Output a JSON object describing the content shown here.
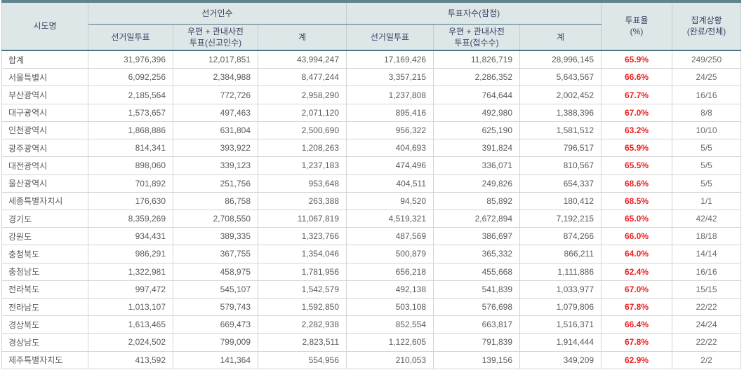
{
  "colors": {
    "top_bar": "#5e848d",
    "header_bg": "#dde7e8",
    "header_text": "#3d4266",
    "header_rule": "#4a7680",
    "turnout_red": "#ee1c1c",
    "body_text": "#5b5b5b",
    "grid_line": "#d4d4d4"
  },
  "table": {
    "headers": {
      "sido": "시도명",
      "electors_group": "선거인수",
      "voters_group": "투표자수(잠정)",
      "electors_day": "선거일투표",
      "electors_postal": "우편 + 관내사전\n투표(신고인수)",
      "electors_total": "계",
      "voters_day": "선거일투표",
      "voters_postal": "우편 + 관내사전\n투표(접수수)",
      "voters_total": "계",
      "turnout": "투표율\n(%)",
      "status": "집계상황\n(완료/전체)"
    },
    "rows": [
      {
        "name": "합계",
        "e_day": "31,976,396",
        "e_pre": "12,017,851",
        "e_total": "43,994,247",
        "v_day": "17,169,426",
        "v_pre": "11,826,719",
        "v_total": "28,996,145",
        "turnout": "65.9%",
        "status": "249/250"
      },
      {
        "name": "서울특별시",
        "e_day": "6,092,256",
        "e_pre": "2,384,988",
        "e_total": "8,477,244",
        "v_day": "3,357,215",
        "v_pre": "2,286,352",
        "v_total": "5,643,567",
        "turnout": "66.6%",
        "status": "24/25"
      },
      {
        "name": "부산광역시",
        "e_day": "2,185,564",
        "e_pre": "772,726",
        "e_total": "2,958,290",
        "v_day": "1,237,808",
        "v_pre": "764,644",
        "v_total": "2,002,452",
        "turnout": "67.7%",
        "status": "16/16"
      },
      {
        "name": "대구광역시",
        "e_day": "1,573,657",
        "e_pre": "497,463",
        "e_total": "2,071,120",
        "v_day": "895,416",
        "v_pre": "492,980",
        "v_total": "1,388,396",
        "turnout": "67.0%",
        "status": "8/8"
      },
      {
        "name": "인천광역시",
        "e_day": "1,868,886",
        "e_pre": "631,804",
        "e_total": "2,500,690",
        "v_day": "956,322",
        "v_pre": "625,190",
        "v_total": "1,581,512",
        "turnout": "63.2%",
        "status": "10/10"
      },
      {
        "name": "광주광역시",
        "e_day": "814,341",
        "e_pre": "393,922",
        "e_total": "1,208,263",
        "v_day": "404,693",
        "v_pre": "391,824",
        "v_total": "796,517",
        "turnout": "65.9%",
        "status": "5/5"
      },
      {
        "name": "대전광역시",
        "e_day": "898,060",
        "e_pre": "339,123",
        "e_total": "1,237,183",
        "v_day": "474,496",
        "v_pre": "336,071",
        "v_total": "810,567",
        "turnout": "65.5%",
        "status": "5/5"
      },
      {
        "name": "울산광역시",
        "e_day": "701,892",
        "e_pre": "251,756",
        "e_total": "953,648",
        "v_day": "404,511",
        "v_pre": "249,826",
        "v_total": "654,337",
        "turnout": "68.6%",
        "status": "5/5"
      },
      {
        "name": "세종특별자치시",
        "e_day": "176,630",
        "e_pre": "86,758",
        "e_total": "263,388",
        "v_day": "94,520",
        "v_pre": "85,892",
        "v_total": "180,412",
        "turnout": "68.5%",
        "status": "1/1"
      },
      {
        "name": "경기도",
        "e_day": "8,359,269",
        "e_pre": "2,708,550",
        "e_total": "11,067,819",
        "v_day": "4,519,321",
        "v_pre": "2,672,894",
        "v_total": "7,192,215",
        "turnout": "65.0%",
        "status": "42/42"
      },
      {
        "name": "강원도",
        "e_day": "934,431",
        "e_pre": "389,335",
        "e_total": "1,323,766",
        "v_day": "487,569",
        "v_pre": "386,697",
        "v_total": "874,266",
        "turnout": "66.0%",
        "status": "18/18"
      },
      {
        "name": "충청북도",
        "e_day": "986,291",
        "e_pre": "367,755",
        "e_total": "1,354,046",
        "v_day": "500,879",
        "v_pre": "365,332",
        "v_total": "866,211",
        "turnout": "64.0%",
        "status": "14/14"
      },
      {
        "name": "충청남도",
        "e_day": "1,322,981",
        "e_pre": "458,975",
        "e_total": "1,781,956",
        "v_day": "656,218",
        "v_pre": "455,668",
        "v_total": "1,111,886",
        "turnout": "62.4%",
        "status": "16/16"
      },
      {
        "name": "전라북도",
        "e_day": "997,472",
        "e_pre": "545,107",
        "e_total": "1,542,579",
        "v_day": "492,138",
        "v_pre": "541,839",
        "v_total": "1,033,977",
        "turnout": "67.0%",
        "status": "15/15"
      },
      {
        "name": "전라남도",
        "e_day": "1,013,107",
        "e_pre": "579,743",
        "e_total": "1,592,850",
        "v_day": "503,108",
        "v_pre": "576,698",
        "v_total": "1,079,806",
        "turnout": "67.8%",
        "status": "22/22"
      },
      {
        "name": "경상북도",
        "e_day": "1,613,465",
        "e_pre": "669,473",
        "e_total": "2,282,938",
        "v_day": "852,554",
        "v_pre": "663,817",
        "v_total": "1,516,371",
        "turnout": "66.4%",
        "status": "24/24"
      },
      {
        "name": "경상남도",
        "e_day": "2,024,502",
        "e_pre": "799,009",
        "e_total": "2,823,511",
        "v_day": "1,122,605",
        "v_pre": "791,839",
        "v_total": "1,914,444",
        "turnout": "67.8%",
        "status": "22/22"
      },
      {
        "name": "제주특별자치도",
        "e_day": "413,592",
        "e_pre": "141,364",
        "e_total": "554,956",
        "v_day": "210,053",
        "v_pre": "139,156",
        "v_total": "349,209",
        "turnout": "62.9%",
        "status": "2/2"
      }
    ]
  }
}
